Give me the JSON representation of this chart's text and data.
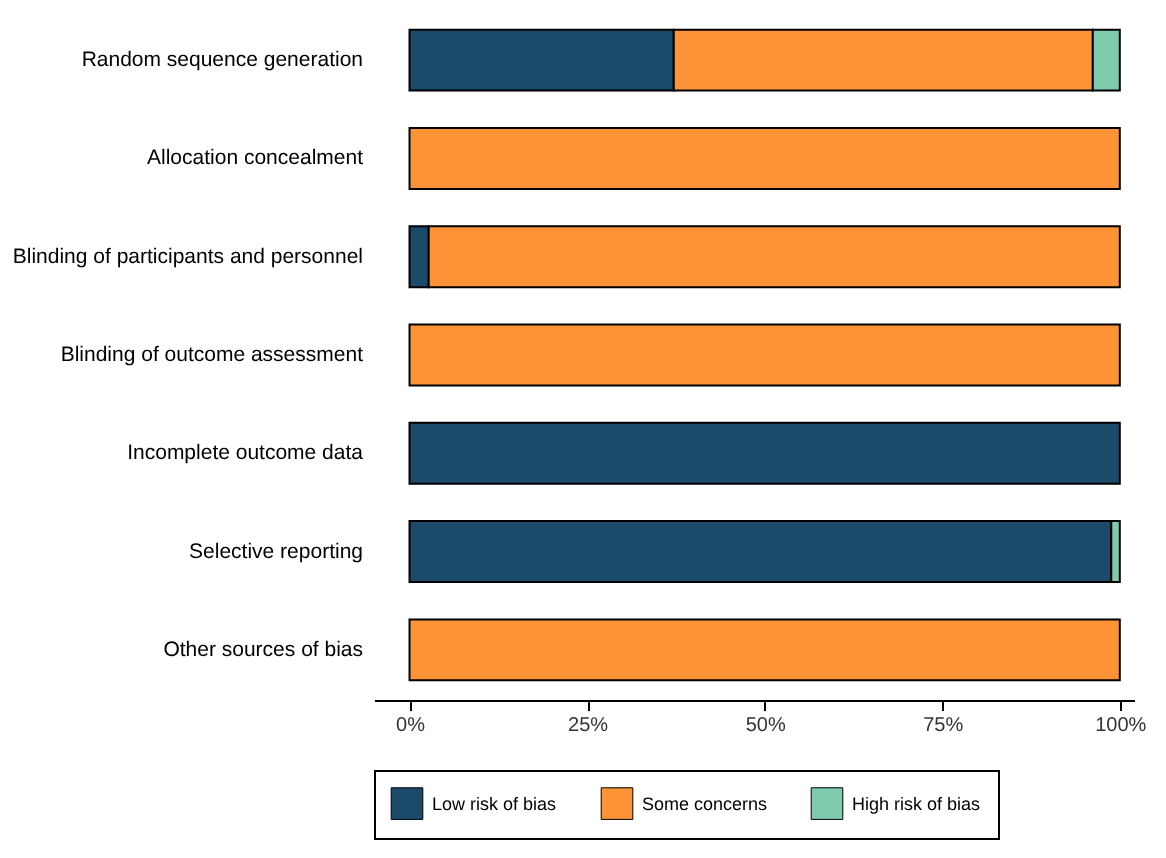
{
  "chart_data": {
    "type": "bar",
    "orientation": "horizontal",
    "stacked": true,
    "categories": [
      "Random sequence generation",
      "Allocation concealment",
      "Blinding of participants and personnel",
      "Blinding of outcome assessment",
      "Incomplete outcome data",
      "Selective reporting",
      "Other sources of bias"
    ],
    "series": [
      {
        "name": "Low risk of bias",
        "color": "#1b4a6b",
        "values": [
          37.2,
          null,
          2.7,
          null,
          100,
          98.8,
          null
        ]
      },
      {
        "name": "Some concerns",
        "color": "#fd9337",
        "values": [
          59.0,
          100,
          97.3,
          100,
          null,
          null,
          100
        ]
      },
      {
        "name": "High risk of bias",
        "color": "#7fcbae",
        "values": [
          3.8,
          null,
          null,
          null,
          null,
          1.2,
          null
        ]
      }
    ],
    "xlim": [
      -5,
      102
    ],
    "xticks": [
      {
        "value": 0,
        "label": "0%"
      },
      {
        "value": 25,
        "label": "25%"
      },
      {
        "value": 50,
        "label": "50%"
      },
      {
        "value": 75,
        "label": "75%"
      },
      {
        "value": 100,
        "label": "100%"
      }
    ],
    "grid": false,
    "legend": "bottom"
  }
}
